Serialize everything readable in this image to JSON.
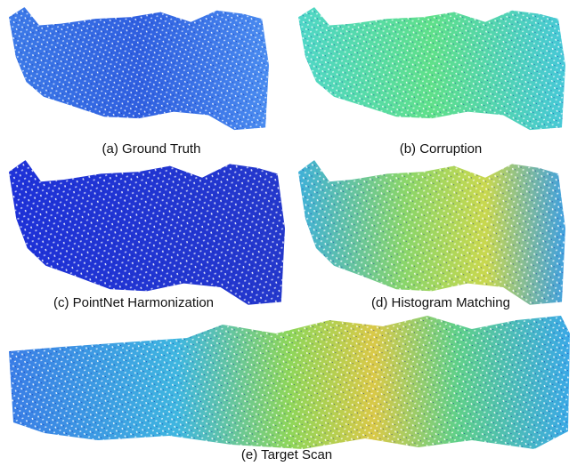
{
  "figure": {
    "panels": [
      {
        "caption": "(a) Ground Truth"
      },
      {
        "caption": "(b) Corruption"
      },
      {
        "caption": "(c) PointNet Harmonization"
      },
      {
        "caption": "(d) Histogram Matching"
      },
      {
        "caption": "(e) Target Scan"
      }
    ]
  }
}
